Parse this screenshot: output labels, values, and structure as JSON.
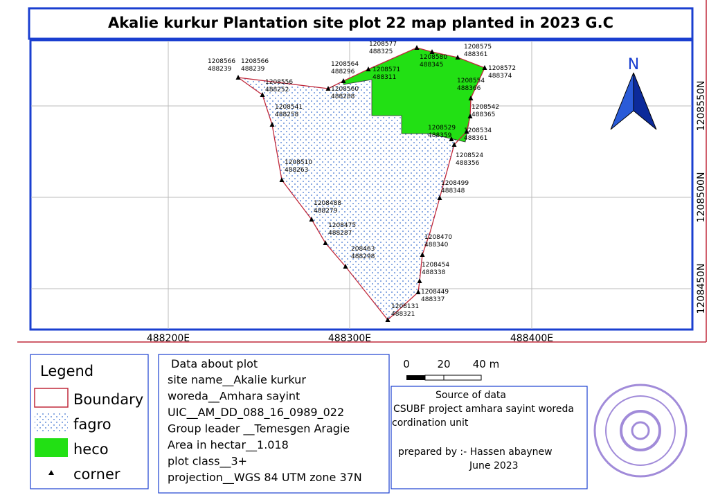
{
  "title": "Akalie kurkur Plantation site plot 22 map planted in 2023 G.C",
  "map": {
    "x_labels": [
      "488200E",
      "488300E",
      "488400E"
    ],
    "y_labels": [
      "1208550N",
      "1208500N",
      "1208450N"
    ],
    "north": "N",
    "corners": [
      {
        "northing": "1208566",
        "easting": "488239"
      },
      {
        "northing": "1208566",
        "easting": "488239"
      },
      {
        "northing": "1208556",
        "easting": "488252"
      },
      {
        "northing": "1208541",
        "easting": "488258"
      },
      {
        "northing": "1208510",
        "easting": "488263"
      },
      {
        "northing": "1208488",
        "easting": "488279"
      },
      {
        "northing": "1208475",
        "easting": "488287"
      },
      {
        "northing": "208463",
        "easting": "488298"
      },
      {
        "northing": "1208131",
        "easting": "488321"
      },
      {
        "northing": "1208449",
        "easting": "488337"
      },
      {
        "northing": "1208454",
        "easting": "488338"
      },
      {
        "northing": "1208470",
        "easting": "488340"
      },
      {
        "northing": "1208499",
        "easting": "488348"
      },
      {
        "northing": "1208524",
        "easting": "488356"
      },
      {
        "northing": "1208534",
        "easting": "488361"
      },
      {
        "northing": "1208529",
        "easting": "488359"
      },
      {
        "northing": "1208542",
        "easting": "488365"
      },
      {
        "northing": "1208554",
        "easting": "488366"
      },
      {
        "northing": "1208572",
        "easting": "488374"
      },
      {
        "northing": "1208575",
        "easting": "488361"
      },
      {
        "northing": "1208580",
        "easting": "488345"
      },
      {
        "northing": "1208577",
        "easting": "488325"
      },
      {
        "northing": "1208571",
        "easting": "488311"
      },
      {
        "northing": "1208564",
        "easting": "488296"
      },
      {
        "northing": "1208560",
        "easting": "488288"
      }
    ]
  },
  "legend": {
    "title": "Legend",
    "items": [
      "Boundary",
      "fagro",
      "heco",
      "corner"
    ]
  },
  "plot_data": {
    "title": "Data about plot",
    "lines": [
      "site name__Akalie kurkur",
      "woreda__Amhara sayint",
      "UIC__AM_DD_088_16_0989_022",
      "Group leader __Temesgen Aragie",
      "Area in hectar__1.018",
      "plot class__3+",
      "projection__WGS 84 UTM zone 37N"
    ]
  },
  "scale": {
    "labels": [
      "0",
      "20",
      "40 m"
    ]
  },
  "source": {
    "lines": [
      "Source of data",
      "CSUBF project amhara sayint woreda",
      "cordination unit",
      "prepared by :- Hassen abaynew",
      "June 2023"
    ]
  }
}
